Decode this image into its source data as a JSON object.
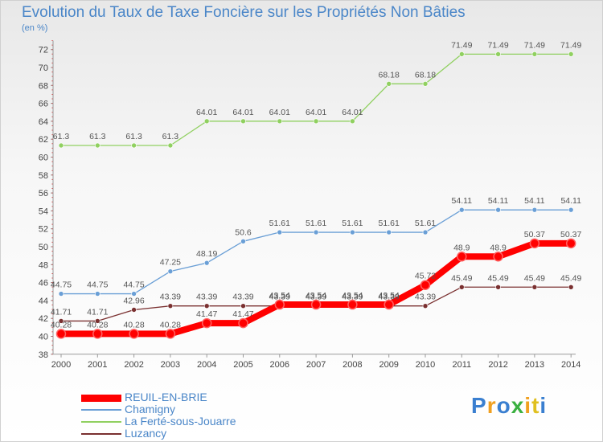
{
  "header": {
    "title": "Evolution du Taux de Taxe Foncière sur les Propriétés Non Bâties",
    "unit": "(en %)"
  },
  "logo": {
    "letters": [
      "P",
      "r",
      "o",
      "x",
      "i",
      "t",
      "i"
    ],
    "colors": [
      "#3a7fd0",
      "#f0a020",
      "#3a7fd0",
      "#3ab040",
      "#f0a020",
      "#e0c020",
      "#3a7fd0"
    ]
  },
  "chart_data": {
    "type": "line",
    "title": "Evolution du Taux de Taxe Foncière sur les Propriétés Non Bâties",
    "ylabel": "(en %)",
    "x": [
      "2000",
      "2001",
      "2002",
      "2003",
      "2004",
      "2005",
      "2006",
      "2007",
      "2008",
      "2009",
      "2010",
      "2011",
      "2012",
      "2013",
      "2014"
    ],
    "ylim": [
      38,
      73
    ],
    "yticks": [
      38,
      40,
      42,
      44,
      46,
      48,
      50,
      52,
      54,
      56,
      58,
      60,
      62,
      64,
      66,
      68,
      70,
      72
    ],
    "grid": false,
    "legend_position": "bottom-left",
    "series": [
      {
        "name": "REUIL-EN-BRIE",
        "color": "#ff0000",
        "values": [
          40.28,
          40.28,
          40.28,
          40.28,
          41.47,
          41.47,
          43.54,
          43.54,
          43.54,
          43.54,
          45.72,
          48.9,
          48.9,
          50.37,
          50.37
        ],
        "labels": [
          "40.28",
          "40.28",
          "40.28",
          "40.28",
          "41.47",
          "41.47",
          "43.54",
          "43.54",
          "43.54",
          "43.54",
          "45.72",
          "48.9",
          "48.9",
          "50.37",
          "50.37"
        ]
      },
      {
        "name": "Chamigny",
        "color": "#6a9fd6",
        "values": [
          44.75,
          44.75,
          44.75,
          47.25,
          48.19,
          50.6,
          51.61,
          51.61,
          51.61,
          51.61,
          51.61,
          54.11,
          54.11,
          54.11,
          54.11
        ],
        "labels": [
          "44.75",
          "44.75",
          "44.75",
          "47.25",
          "48.19",
          "50.6",
          "51.61",
          "51.61",
          "51.61",
          "51.61",
          "51.61",
          "54.11",
          "54.11",
          "54.11",
          "54.11"
        ]
      },
      {
        "name": "La Ferté-sous-Jouarre",
        "color": "#90d060",
        "values": [
          61.3,
          61.3,
          61.3,
          61.3,
          64.01,
          64.01,
          64.01,
          64.01,
          64.01,
          68.18,
          68.18,
          71.49,
          71.49,
          71.49,
          71.49
        ],
        "labels": [
          "61.3",
          "61.3",
          "61.3",
          "61.3",
          "64.01",
          "64.01",
          "64.01",
          "64.01",
          "64.01",
          "68.18",
          "68.18",
          "71.49",
          "71.49",
          "71.49",
          "71.49"
        ]
      },
      {
        "name": "Luzancy",
        "color": "#7a3030",
        "values": [
          41.71,
          41.71,
          42.96,
          43.39,
          43.39,
          43.39,
          43.39,
          43.39,
          43.39,
          43.39,
          43.39,
          45.49,
          45.49,
          45.49,
          45.49
        ],
        "labels": [
          "41.71",
          "41.71",
          "42.96",
          "43.39",
          "43.39",
          "43.39",
          "43.39",
          "43.39",
          "43.39",
          "43.39",
          "43.39",
          "45.49",
          "45.49",
          "45.49",
          "45.49"
        ]
      }
    ]
  }
}
